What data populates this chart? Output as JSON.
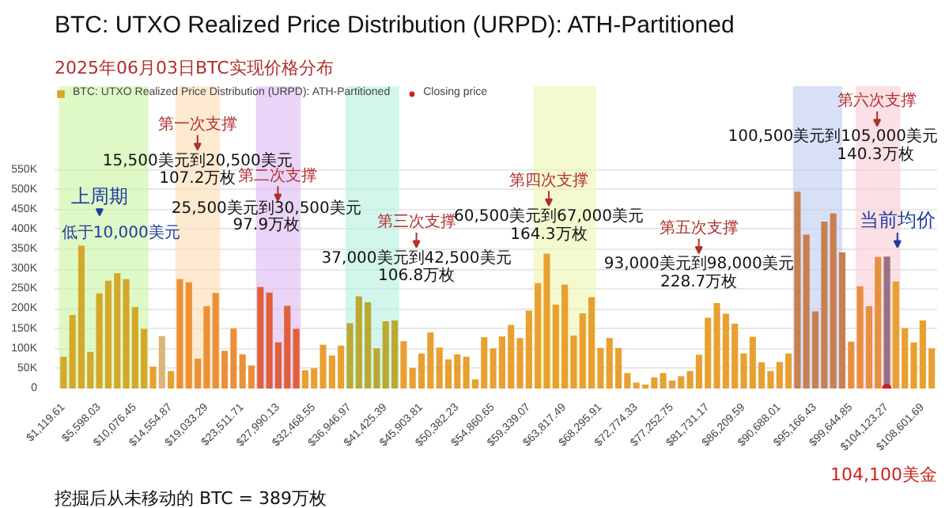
{
  "chart_data": {
    "type": "bar",
    "title": "BTC: UTXO Realized Price Distribution (URPD): ATH-Partitioned",
    "subtitle": "2025年06月03日BTC实现价格分布",
    "x": [
      1120,
      2239,
      3359,
      4478,
      5598,
      6718,
      7837,
      8957,
      10076,
      11196,
      12316,
      13435,
      14555,
      15674,
      16794,
      17914,
      19033,
      20153,
      21272,
      22392,
      23512,
      24631,
      25751,
      26871,
      27990,
      29110,
      30229,
      31349,
      32469,
      33588,
      34708,
      35827,
      36947,
      38067,
      39186,
      40306,
      41425,
      42545,
      43665,
      44784,
      45904,
      47023,
      48143,
      49263,
      50382,
      51502,
      52621,
      53741,
      54861,
      55980,
      57100,
      58219,
      59339,
      60459,
      61578,
      62698,
      63817,
      64937,
      66057,
      67176,
      68296,
      69416,
      70535,
      71655,
      72774,
      73894,
      75014,
      76133,
      77253,
      78372,
      79492,
      80612,
      81731,
      82851,
      83970,
      85090,
      86210,
      87329,
      88449,
      89568,
      90688,
      91808,
      92927,
      94047,
      95166,
      96286,
      97406,
      98525,
      99645,
      100764,
      101884,
      103004,
      104123,
      105243,
      106362,
      107482,
      108602,
      109721
    ],
    "series": [
      {
        "name": "BTC: UTXO Realized Price Distribution (URPD): ATH-Partitioned",
        "values": [
          80000,
          185000,
          359000,
          92000,
          239000,
          271000,
          290000,
          275000,
          205000,
          150000,
          55000,
          132000,
          44000,
          275000,
          267000,
          75000,
          207000,
          240000,
          95000,
          151000,
          86000,
          58000,
          255000,
          241000,
          116000,
          208000,
          150000,
          46000,
          51000,
          110000,
          83000,
          108000,
          164000,
          232000,
          217000,
          101000,
          169000,
          171000,
          119000,
          52000,
          88000,
          141000,
          103000,
          73000,
          86000,
          80000,
          23000,
          129000,
          101000,
          131000,
          160000,
          127000,
          196000,
          265000,
          339000,
          211000,
          261000,
          133000,
          189000,
          230000,
          102000,
          127000,
          102000,
          39000,
          15000,
          10000,
          28000,
          39000,
          20000,
          31000,
          44000,
          85000,
          178000,
          215000,
          188000,
          163000,
          88000,
          130000,
          66000,
          44000,
          67000,
          88000,
          495000,
          387000,
          194000,
          420000,
          440000,
          342000,
          118000,
          257000,
          207000,
          331000,
          332000,
          269000,
          152000,
          116000,
          171000,
          101000
        ],
        "colors": [
          "#d4a82a",
          "#d4a82a",
          "#d4a82a",
          "#d4a82a",
          "#d4a82a",
          "#d4a82a",
          "#d4a82a",
          "#d4a82a",
          "#d4a82a",
          "#d4a82a",
          "#e8a030",
          "#dcb478",
          "#e8a030",
          "#ec9038",
          "#ec9038",
          "#ec9038",
          "#ec9038",
          "#ec9038",
          "#ec9038",
          "#ec9038",
          "#ec9038",
          "#ec9038",
          "#e0603c",
          "#e0603c",
          "#e0603c",
          "#e0603c",
          "#e0603c",
          "#e8a030",
          "#e8a030",
          "#e8a030",
          "#e8a030",
          "#e8a030",
          "#bca832",
          "#bca832",
          "#bca832",
          "#bca832",
          "#bca832",
          "#bca832",
          "#e8a030",
          "#e8a030",
          "#e8a030",
          "#e8a030",
          "#e8a030",
          "#e8a030",
          "#e8a030",
          "#e8a030",
          "#e8a030",
          "#e8a030",
          "#e8a030",
          "#e8a030",
          "#e8a030",
          "#e8a030",
          "#e8a030",
          "#e8a030",
          "#e8a030",
          "#e8a030",
          "#e8a030",
          "#e8a030",
          "#e8a030",
          "#e8a030",
          "#e8a030",
          "#e8a030",
          "#e8a030",
          "#e8a030",
          "#e8a030",
          "#e8a030",
          "#e8a030",
          "#e8a030",
          "#e8a030",
          "#e8a030",
          "#e8a030",
          "#e8a030",
          "#e8a030",
          "#e8a030",
          "#e8a030",
          "#e8a030",
          "#e8a030",
          "#e8a030",
          "#e8a030",
          "#e8a030",
          "#e8a030",
          "#e8a030",
          "#c88050",
          "#c88050",
          "#c88050",
          "#c88050",
          "#c88050",
          "#c88050",
          "#e89040",
          "#e89040",
          "#e89040",
          "#e89040",
          "#9a7080",
          "#e8a030",
          "#e8a030",
          "#e8a030",
          "#e8a030",
          "#e8a030"
        ]
      },
      {
        "name": "Closing price",
        "type": "scatter",
        "color": "#cc2020",
        "x": [
          104100
        ],
        "values": [
          0
        ]
      }
    ],
    "xlim": [
      0,
      110400
    ],
    "ylim": [
      0,
      760000
    ],
    "xticks": [
      {
        "value": 1119.61,
        "label": "$1,119.61"
      },
      {
        "value": 5598.03,
        "label": "$5,598.03"
      },
      {
        "value": 10076.45,
        "label": "$10,076.45"
      },
      {
        "value": 14554.87,
        "label": "$14,554.87"
      },
      {
        "value": 19033.29,
        "label": "$19,033.29"
      },
      {
        "value": 23511.71,
        "label": "$23,511.71"
      },
      {
        "value": 27990.13,
        "label": "$27,990.13"
      },
      {
        "value": 32468.55,
        "label": "$32,468.55"
      },
      {
        "value": 36946.97,
        "label": "$36,946.97"
      },
      {
        "value": 41425.39,
        "label": "$41,425.39"
      },
      {
        "value": 45903.81,
        "label": "$45,903.81"
      },
      {
        "value": 50382.23,
        "label": "$50,382.23"
      },
      {
        "value": 54860.65,
        "label": "$54,860.65"
      },
      {
        "value": 59339.07,
        "label": "$59,339.07"
      },
      {
        "value": 63817.49,
        "label": "$63,817.49"
      },
      {
        "value": 68295.91,
        "label": "$68,295.91"
      },
      {
        "value": 72774.33,
        "label": "$72,774.33"
      },
      {
        "value": 77252.75,
        "label": "$77,252.75"
      },
      {
        "value": 81731.17,
        "label": "$81,731.17"
      },
      {
        "value": 86209.59,
        "label": "$86,209.59"
      },
      {
        "value": 90688.01,
        "label": "$90,688.01"
      },
      {
        "value": 95166.43,
        "label": "$95,166.43"
      },
      {
        "value": 99644.85,
        "label": "$99,644.85"
      },
      {
        "value": 104123.27,
        "label": "$104,123.27"
      },
      {
        "value": 108601.69,
        "label": "$108,601.69"
      }
    ],
    "yticks": [
      {
        "value": 0,
        "label": "0"
      },
      {
        "value": 50000,
        "label": "50K"
      },
      {
        "value": 100000,
        "label": "100K"
      },
      {
        "value": 150000,
        "label": "150K"
      },
      {
        "value": 200000,
        "label": "200K"
      },
      {
        "value": 250000,
        "label": "250K"
      },
      {
        "value": 300000,
        "label": "300K"
      },
      {
        "value": 350000,
        "label": "350K"
      },
      {
        "value": 400000,
        "label": "400K"
      },
      {
        "value": 450000,
        "label": "450K"
      },
      {
        "value": 500000,
        "label": "500K"
      },
      {
        "value": 550000,
        "label": "550K"
      }
    ],
    "grid": "y",
    "legend": "top left",
    "bands": [
      {
        "axis": "x",
        "from": 560,
        "to": 11756,
        "color": "#c8f5a0"
      },
      {
        "axis": "x",
        "from": 15114,
        "to": 20713,
        "color": "#fddcb0"
      },
      {
        "axis": "x",
        "from": 25191,
        "to": 30790,
        "color": "#dcb8f2"
      },
      {
        "axis": "x",
        "from": 36388,
        "to": 43106,
        "color": "#b4f0e0"
      },
      {
        "axis": "x",
        "from": 59902,
        "to": 67740,
        "color": "#eef5b0"
      },
      {
        "axis": "x",
        "from": 92368,
        "to": 98527,
        "color": "#bccbf2"
      },
      {
        "axis": "x",
        "from": 100205,
        "to": 105803,
        "color": "#f8ccd4"
      }
    ],
    "annotations": [
      "上周期",
      "低于10,000美元",
      "第一次支撑",
      "15,500美元到20,500美元",
      "107.2万枚",
      "第二次支撑",
      "25,500美元到30,500美元",
      "97.9万枚",
      "第三次支撑",
      "37,000美元到42,500美元",
      "106.8万枚",
      "第四次支撑",
      "60,500美元到67,000美元",
      "164.3万枚",
      "第五次支撑",
      "93,000美元到98,000美元",
      "228.7万枚",
      "第六次支撑",
      "100,500美元到105,000美元",
      "140.3万枚",
      "当前均价",
      "104,100美金",
      "挖掘后从未移动的 BTC = 389万枚"
    ]
  }
}
